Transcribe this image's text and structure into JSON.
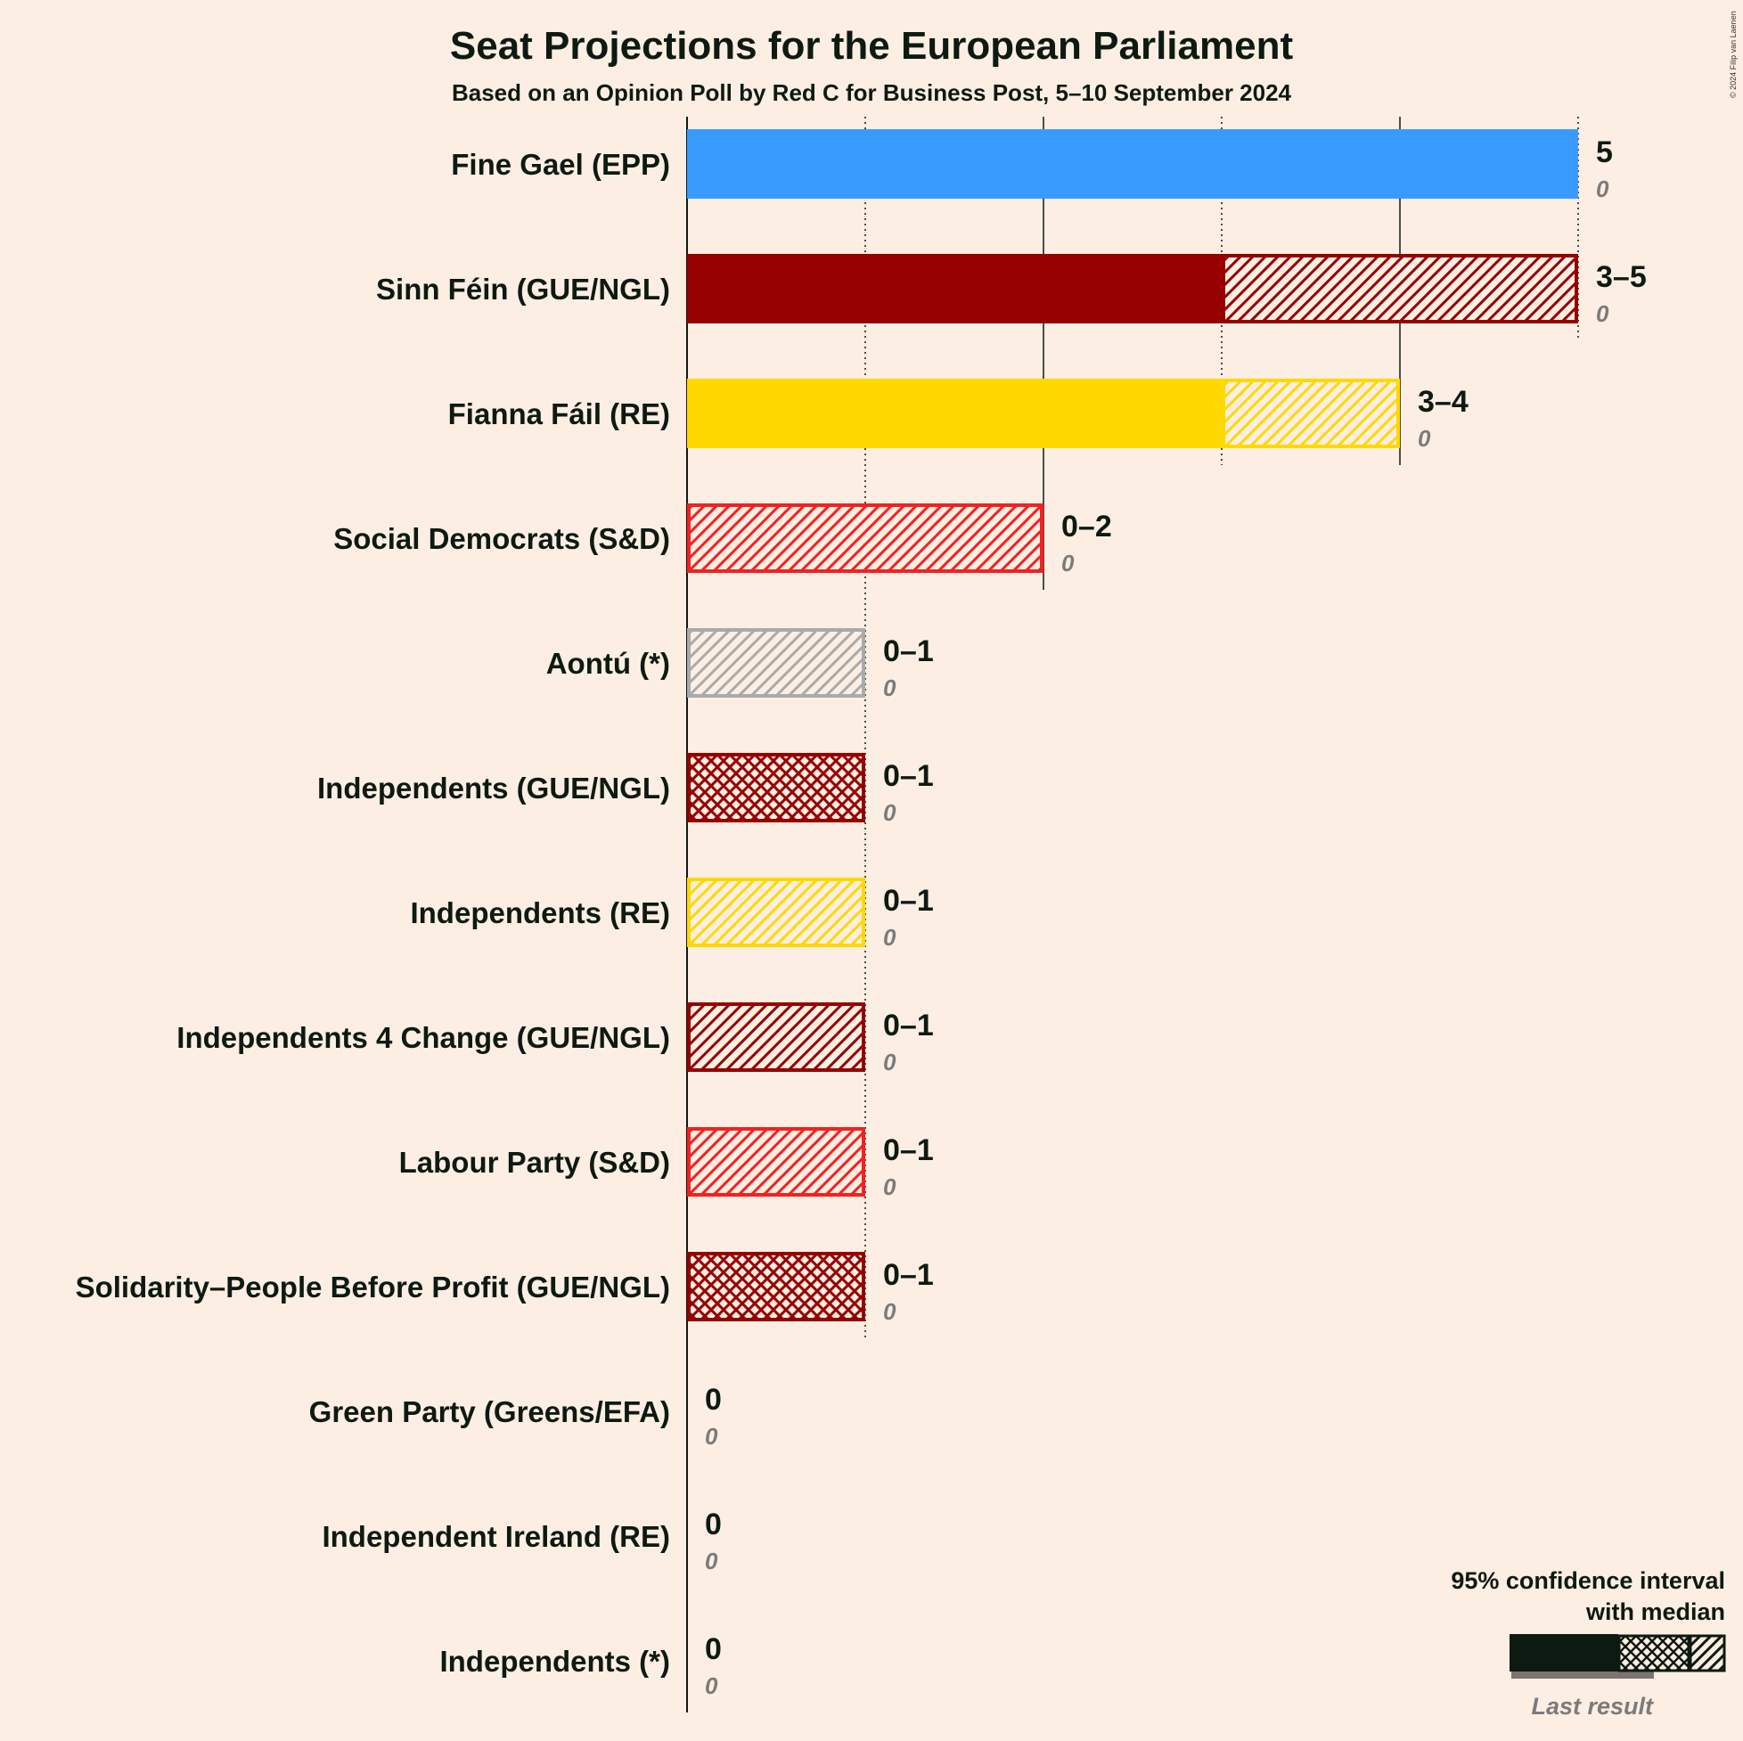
{
  "chart_data": {
    "type": "bar",
    "title": "Seat Projections for the European Parliament",
    "subtitle": "Based on an Opinion Poll by Red C for Business Post, 5–10 September 2024",
    "copyright": "© 2024 Filip van Laenen",
    "xlim": [
      0,
      5
    ],
    "grid": true,
    "legend": {
      "title_line1": "95% confidence interval",
      "title_line2": "with median",
      "last_result": "Last result",
      "position": "bottom-right"
    },
    "parties": [
      {
        "name": "Fine Gael (EPP)",
        "low": 5,
        "median": 5,
        "high": 5,
        "range_label": "5",
        "last": 0,
        "last_label": "0",
        "color": "#3A9BFF",
        "pattern": "diag"
      },
      {
        "name": "Sinn Féin (GUE/NGL)",
        "low": 3,
        "median": 3,
        "high": 5,
        "range_label": "3–5",
        "last": 0,
        "last_label": "0",
        "color": "#960000",
        "pattern": "diag"
      },
      {
        "name": "Fianna Fáil (RE)",
        "low": 3,
        "median": 3,
        "high": 4,
        "range_label": "3–4",
        "last": 0,
        "last_label": "0",
        "color": "#FFD800",
        "pattern": "diag"
      },
      {
        "name": "Social Democrats (S&D)",
        "low": 0,
        "median": 0,
        "high": 2,
        "range_label": "0–2",
        "last": 0,
        "last_label": "0",
        "color": "#F52020",
        "pattern": "diag"
      },
      {
        "name": "Aontú (*)",
        "low": 0,
        "median": 0,
        "high": 1,
        "range_label": "0–1",
        "last": 0,
        "last_label": "0",
        "color": "#AAAAAA",
        "pattern": "diag"
      },
      {
        "name": "Independents (GUE/NGL)",
        "low": 0,
        "median": 0,
        "high": 1,
        "range_label": "0–1",
        "last": 0,
        "last_label": "0",
        "color": "#960000",
        "pattern": "cross"
      },
      {
        "name": "Independents (RE)",
        "low": 0,
        "median": 0,
        "high": 1,
        "range_label": "0–1",
        "last": 0,
        "last_label": "0",
        "color": "#FFD800",
        "pattern": "diag"
      },
      {
        "name": "Independents 4 Change (GUE/NGL)",
        "low": 0,
        "median": 0,
        "high": 1,
        "range_label": "0–1",
        "last": 0,
        "last_label": "0",
        "color": "#960000",
        "pattern": "diag"
      },
      {
        "name": "Labour Party (S&D)",
        "low": 0,
        "median": 0,
        "high": 1,
        "range_label": "0–1",
        "last": 0,
        "last_label": "0",
        "color": "#F52020",
        "pattern": "diag"
      },
      {
        "name": "Solidarity–People Before Profit (GUE/NGL)",
        "low": 0,
        "median": 0,
        "high": 1,
        "range_label": "0–1",
        "last": 0,
        "last_label": "0",
        "color": "#960000",
        "pattern": "cross"
      },
      {
        "name": "Green Party (Greens/EFA)",
        "low": 0,
        "median": 0,
        "high": 0,
        "range_label": "0",
        "last": 0,
        "last_label": "0",
        "color": "#22AA22",
        "pattern": "diag"
      },
      {
        "name": "Independent Ireland (RE)",
        "low": 0,
        "median": 0,
        "high": 0,
        "range_label": "0",
        "last": 0,
        "last_label": "0",
        "color": "#FFD800",
        "pattern": "diag"
      },
      {
        "name": "Independents (*)",
        "low": 0,
        "median": 0,
        "high": 0,
        "range_label": "0",
        "last": 0,
        "last_label": "0",
        "color": "#AAAAAA",
        "pattern": "diag"
      }
    ]
  }
}
